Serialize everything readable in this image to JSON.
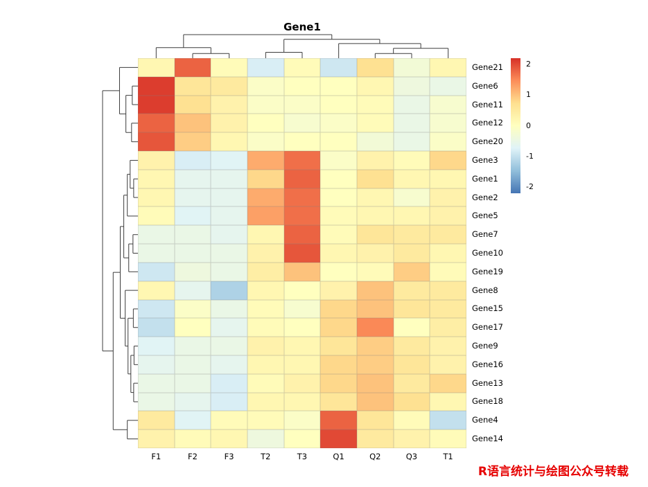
{
  "watermark": "R语言统计与绘图公众号转载",
  "chart_data": {
    "type": "heatmap",
    "title": "Gene1",
    "legend_position": "right",
    "columns": [
      "F1",
      "F2",
      "F3",
      "T2",
      "T3",
      "Q1",
      "Q2",
      "Q3",
      "T1"
    ],
    "rows": [
      "Gene21",
      "Gene6",
      "Gene11",
      "Gene12",
      "Gene20",
      "Gene3",
      "Gene1",
      "Gene2",
      "Gene5",
      "Gene7",
      "Gene10",
      "Gene19",
      "Gene8",
      "Gene15",
      "Gene17",
      "Gene9",
      "Gene16",
      "Gene13",
      "Gene18",
      "Gene4",
      "Gene14"
    ],
    "values": [
      [
        0.2,
        1.8,
        0.1,
        -0.8,
        0.1,
        -0.9,
        0.7,
        -0.3,
        0.2
      ],
      [
        2.1,
        0.6,
        0.5,
        -0.1,
        0.0,
        0.0,
        0.2,
        -0.4,
        -0.5
      ],
      [
        2.1,
        0.7,
        0.3,
        -0.1,
        -0.1,
        0.0,
        0.1,
        -0.5,
        -0.2
      ],
      [
        1.8,
        1.0,
        0.3,
        0.0,
        -0.2,
        -0.1,
        0.1,
        -0.5,
        -0.2
      ],
      [
        1.9,
        0.9,
        0.2,
        -0.1,
        0.0,
        0.0,
        -0.3,
        -0.5,
        -0.1
      ],
      [
        0.3,
        -0.8,
        -0.7,
        1.2,
        1.7,
        -0.1,
        0.3,
        0.1,
        0.8
      ],
      [
        0.2,
        -0.6,
        -0.6,
        0.8,
        1.8,
        0.0,
        0.7,
        0.2,
        0.2
      ],
      [
        0.2,
        -0.6,
        -0.6,
        1.2,
        1.7,
        0.0,
        0.2,
        -0.2,
        0.3
      ],
      [
        0.1,
        -0.7,
        -0.6,
        1.3,
        1.7,
        0.1,
        0.2,
        0.2,
        0.3
      ],
      [
        -0.5,
        -0.5,
        -0.6,
        0.2,
        1.8,
        0.1,
        0.6,
        0.5,
        0.5
      ],
      [
        -0.5,
        -0.5,
        -0.5,
        0.3,
        1.9,
        0.2,
        0.3,
        0.5,
        0.2
      ],
      [
        -0.9,
        -0.4,
        -0.5,
        0.4,
        1.0,
        0.0,
        0.1,
        0.9,
        0.1
      ],
      [
        0.2,
        -0.6,
        -1.2,
        0.2,
        0.0,
        0.3,
        1.0,
        0.5,
        0.5
      ],
      [
        -0.9,
        -0.1,
        -0.5,
        0.1,
        -0.2,
        0.8,
        1.0,
        0.6,
        0.5
      ],
      [
        -1.0,
        0.0,
        -0.6,
        0.1,
        0.0,
        0.8,
        1.5,
        0.0,
        0.4
      ],
      [
        -0.7,
        -0.5,
        -0.5,
        0.3,
        0.2,
        0.6,
        0.9,
        0.5,
        0.3
      ],
      [
        -0.6,
        -0.5,
        -0.6,
        0.2,
        0.2,
        0.8,
        0.9,
        0.6,
        0.3
      ],
      [
        -0.5,
        -0.5,
        -0.8,
        0.1,
        0.3,
        0.8,
        1.0,
        0.5,
        0.8
      ],
      [
        -0.5,
        -0.6,
        -0.8,
        0.2,
        0.2,
        0.6,
        1.0,
        0.7,
        0.2
      ],
      [
        0.5,
        -0.7,
        0.1,
        0.1,
        -0.1,
        1.8,
        0.6,
        0.1,
        -1.0
      ],
      [
        0.3,
        0.1,
        0.2,
        -0.4,
        0.0,
        2.0,
        0.5,
        0.3,
        0.1
      ]
    ],
    "color_scale": {
      "stops": [
        "#4575B4",
        "#91BFDB",
        "#E0F3F8",
        "#FFFFBF",
        "#FEE090",
        "#FC8D59",
        "#D73027"
      ],
      "domain": [
        -2.2,
        2.2
      ],
      "legend_ticks": [
        2,
        1,
        0,
        -1,
        -2
      ]
    },
    "col_dendrogram": {
      "h": 1.0,
      "c": [
        {
          "h": 0.45,
          "c": [
            {
              "leaf": "F1"
            },
            {
              "h": 0.2,
              "c": [
                {
                  "leaf": "F2"
                },
                {
                  "leaf": "F3"
                }
              ]
            }
          ]
        },
        {
          "h": 0.8,
          "c": [
            {
              "h": 0.25,
              "c": [
                {
                  "leaf": "T2"
                },
                {
                  "leaf": "T3"
                }
              ]
            },
            {
              "h": 0.62,
              "c": [
                {
                  "leaf": "Q1"
                },
                {
                  "h": 0.42,
                  "c": [
                    {
                      "h": 0.2,
                      "c": [
                        {
                          "leaf": "Q2"
                        },
                        {
                          "leaf": "Q3"
                        }
                      ]
                    },
                    {
                      "leaf": "T1"
                    }
                  ]
                }
              ]
            }
          ]
        }
      ]
    },
    "row_dendrogram": {
      "h": 1.0,
      "c": [
        {
          "h": 0.52,
          "c": [
            {
              "leaf": "Gene21"
            },
            {
              "h": 0.34,
              "c": [
                {
                  "h": 0.16,
                  "c": [
                    {
                      "leaf": "Gene6"
                    },
                    {
                      "leaf": "Gene11"
                    }
                  ]
                },
                {
                  "h": 0.18,
                  "c": [
                    {
                      "leaf": "Gene12"
                    },
                    {
                      "leaf": "Gene20"
                    }
                  ]
                }
              ]
            }
          ]
        },
        {
          "h": 0.7,
          "c": [
            {
              "h": 0.5,
              "c": [
                {
                  "h": 0.4,
                  "c": [
                    {
                      "h": 0.3,
                      "c": [
                        {
                          "h": 0.22,
                          "c": [
                            {
                              "leaf": "Gene3"
                            },
                            {
                              "h": 0.12,
                              "c": [
                                {
                                  "leaf": "Gene1"
                                },
                                {
                                  "leaf": "Gene2"
                                }
                              ]
                            }
                          ]
                        },
                        {
                          "leaf": "Gene5"
                        }
                      ]
                    },
                    {
                      "h": 0.26,
                      "c": [
                        {
                          "h": 0.14,
                          "c": [
                            {
                              "leaf": "Gene7"
                            },
                            {
                              "leaf": "Gene10"
                            }
                          ]
                        },
                        {
                          "leaf": "Gene19"
                        }
                      ]
                    }
                  ]
                },
                {
                  "h": 0.36,
                  "c": [
                    {
                      "leaf": "Gene8"
                    },
                    {
                      "h": 0.28,
                      "c": [
                        {
                          "h": 0.13,
                          "c": [
                            {
                              "leaf": "Gene15"
                            },
                            {
                              "leaf": "Gene17"
                            }
                          ]
                        },
                        {
                          "h": 0.2,
                          "c": [
                            {
                              "h": 0.11,
                              "c": [
                                {
                                  "leaf": "Gene9"
                                },
                                {
                                  "leaf": "Gene16"
                                }
                              ]
                            },
                            {
                              "h": 0.12,
                              "c": [
                                {
                                  "leaf": "Gene13"
                                },
                                {
                                  "leaf": "Gene18"
                                }
                              ]
                            }
                          ]
                        }
                      ]
                    }
                  ]
                }
              ]
            },
            {
              "h": 0.3,
              "c": [
                {
                  "leaf": "Gene4"
                },
                {
                  "leaf": "Gene14"
                }
              ]
            }
          ]
        }
      ]
    }
  }
}
